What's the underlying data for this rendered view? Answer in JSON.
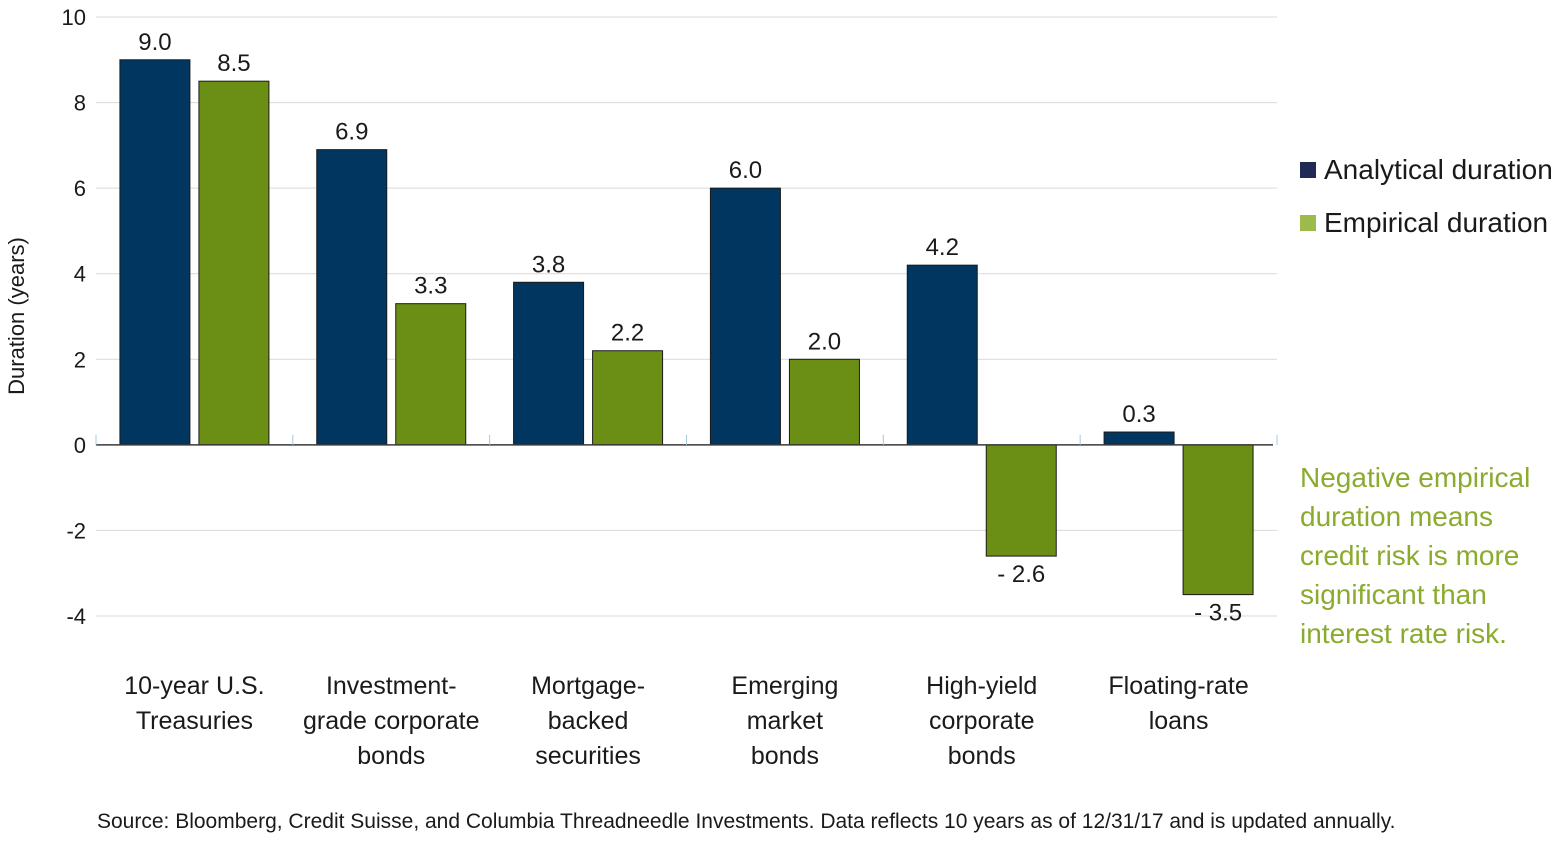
{
  "chart_data": {
    "type": "bar",
    "ylabel": "Duration (years)",
    "ylim": [
      -4,
      10
    ],
    "yticks": [
      10,
      8,
      6,
      4,
      2,
      0,
      -2,
      -4
    ],
    "grid": true,
    "legend_position": "right",
    "categories": [
      [
        "10-year U.S.",
        "Treasuries"
      ],
      [
        "Investment-",
        "grade corporate",
        "bonds"
      ],
      [
        "Mortgage-",
        "backed",
        "securities"
      ],
      [
        "Emerging",
        "market",
        "bonds"
      ],
      [
        "High-yield",
        "corporate",
        "bonds"
      ],
      [
        "Floating-rate",
        "loans"
      ]
    ],
    "series": [
      {
        "name": "Analytical duration",
        "color": "#003660",
        "legend_color": "#1f2b55",
        "values": [
          9.0,
          6.9,
          3.8,
          6.0,
          4.2,
          0.3
        ],
        "labels": [
          "9.0",
          "6.9",
          "3.8",
          "6.0",
          "4.2",
          "0.3"
        ]
      },
      {
        "name": "Empirical duration",
        "color": "#6b8e14",
        "legend_color": "#9dba4a",
        "values": [
          8.5,
          3.3,
          2.2,
          2.0,
          -2.6,
          -3.5
        ],
        "labels": [
          "8.5",
          "3.3",
          "2.2",
          "2.0",
          "- 2.6",
          "- 3.5"
        ]
      }
    ],
    "annotation": {
      "lines": [
        "Negative empirical",
        "duration means",
        "credit risk is more",
        "significant than",
        "interest rate risk."
      ],
      "color": "#8aab2e"
    }
  },
  "source": "Source: Bloomberg, Credit Suisse, and Columbia Threadneedle Investments. Data reflects 10 years as of 12/31/17 and is updated annually."
}
